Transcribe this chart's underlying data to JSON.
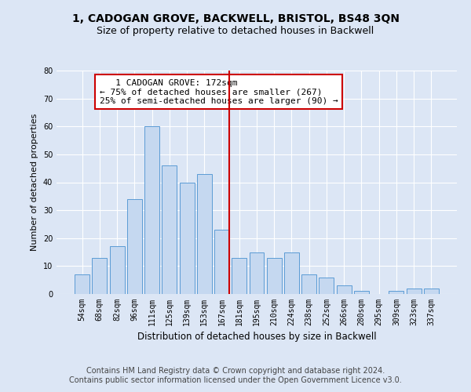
{
  "title": "1, CADOGAN GROVE, BACKWELL, BRISTOL, BS48 3QN",
  "subtitle": "Size of property relative to detached houses in Backwell",
  "xlabel": "Distribution of detached houses by size in Backwell",
  "ylabel": "Number of detached properties",
  "footer_line1": "Contains HM Land Registry data © Crown copyright and database right 2024.",
  "footer_line2": "Contains public sector information licensed under the Open Government Licence v3.0.",
  "categories": [
    "54sqm",
    "68sqm",
    "82sqm",
    "96sqm",
    "111sqm",
    "125sqm",
    "139sqm",
    "153sqm",
    "167sqm",
    "181sqm",
    "195sqm",
    "210sqm",
    "224sqm",
    "238sqm",
    "252sqm",
    "266sqm",
    "280sqm",
    "295sqm",
    "309sqm",
    "323sqm",
    "337sqm"
  ],
  "values": [
    7,
    13,
    17,
    34,
    60,
    46,
    40,
    43,
    23,
    13,
    15,
    13,
    15,
    7,
    6,
    3,
    1,
    0,
    1,
    2,
    2
  ],
  "bar_color": "#c5d8f0",
  "bar_edge_color": "#5b9bd5",
  "vline_index": 8,
  "vline_color": "#cc0000",
  "annotation_line1": "   1 CADOGAN GROVE: 172sqm",
  "annotation_line2": "← 75% of detached houses are smaller (267)",
  "annotation_line3": "25% of semi-detached houses are larger (90) →",
  "annotation_box_color": "#cc0000",
  "ylim": [
    0,
    80
  ],
  "yticks": [
    0,
    10,
    20,
    30,
    40,
    50,
    60,
    70,
    80
  ],
  "background_color": "#dce6f5",
  "plot_bg_color": "#dce6f5",
  "grid_color": "#ffffff",
  "title_fontsize": 10,
  "subtitle_fontsize": 9,
  "xlabel_fontsize": 8.5,
  "ylabel_fontsize": 8,
  "tick_fontsize": 7,
  "footer_fontsize": 7,
  "annotation_fontsize": 8
}
